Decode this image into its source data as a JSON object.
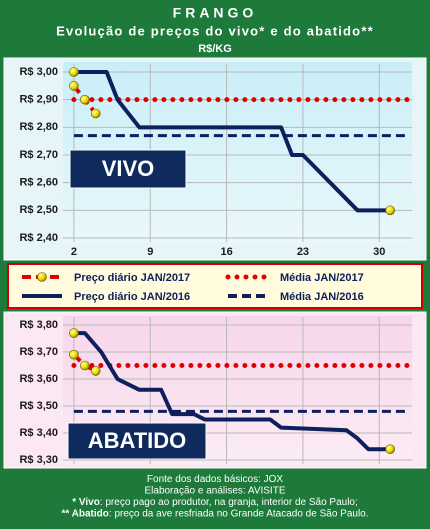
{
  "header": {
    "title": "FRANGO",
    "subtitle": "Evolução de preços do vivo* e do abatido**",
    "unit": "R$/KG"
  },
  "chart_data": [
    {
      "type": "line",
      "annotation": "VIVO",
      "xlim": [
        1,
        33
      ],
      "xticks": [
        2,
        9,
        16,
        23,
        30
      ],
      "ylim": [
        2.4,
        3.0
      ],
      "yticks": [
        {
          "value": 2.4,
          "label": "R$ 2,40"
        },
        {
          "value": 2.5,
          "label": "R$ 2,50"
        },
        {
          "value": 2.6,
          "label": "R$ 2,60"
        },
        {
          "value": 2.7,
          "label": "R$ 2,70"
        },
        {
          "value": 2.8,
          "label": "R$ 2,80"
        },
        {
          "value": 2.9,
          "label": "R$ 2,90"
        },
        {
          "value": 3.0,
          "label": "R$ 3,00"
        }
      ],
      "grid": true,
      "series": [
        {
          "name": "Preço diário JAN/2017",
          "color": "#e00000",
          "line_style": "dashed",
          "markers": "all",
          "x": [
            2,
            3,
            4
          ],
          "values": [
            2.95,
            2.9,
            2.85
          ]
        },
        {
          "name": "Média JAN/2017",
          "color": "#e00000",
          "line_style": "dotted",
          "value": 2.9
        },
        {
          "name": "Preço diário JAN/2016",
          "color": "#0d1f5c",
          "line_style": "solid",
          "markers": "ends",
          "x": [
            2,
            5,
            6,
            8,
            21,
            22,
            23,
            28,
            31
          ],
          "values": [
            3.0,
            3.0,
            2.9,
            2.8,
            2.8,
            2.7,
            2.7,
            2.5,
            2.5
          ]
        },
        {
          "name": "Média JAN/2016",
          "color": "#0d1f5c",
          "line_style": "dashed",
          "value": 2.77
        }
      ]
    },
    {
      "type": "line",
      "annotation": "ABATIDO",
      "xlim": [
        1,
        33
      ],
      "xticks": [
        2,
        9,
        16,
        23,
        30
      ],
      "ylim": [
        3.3,
        3.8
      ],
      "yticks": [
        {
          "value": 3.3,
          "label": "R$ 3,30"
        },
        {
          "value": 3.4,
          "label": "R$ 3,40"
        },
        {
          "value": 3.5,
          "label": "R$ 3,50"
        },
        {
          "value": 3.6,
          "label": "R$ 3,60"
        },
        {
          "value": 3.7,
          "label": "R$ 3,70"
        },
        {
          "value": 3.8,
          "label": "R$ 3,80"
        }
      ],
      "grid": true,
      "series": [
        {
          "color": "#e00000",
          "line_style": "dashed",
          "markers": "all",
          "x": [
            2,
            3,
            4
          ],
          "values": [
            3.69,
            3.65,
            3.63
          ]
        },
        {
          "color": "#e00000",
          "line_style": "dotted",
          "value": 3.65
        },
        {
          "color": "#0d1f5c",
          "line_style": "solid",
          "markers": "ends",
          "x": [
            2,
            3,
            4.5,
            6,
            7,
            8,
            10,
            11,
            13,
            14,
            20,
            21,
            27,
            28,
            29,
            31
          ],
          "values": [
            3.77,
            3.77,
            3.7,
            3.6,
            3.58,
            3.56,
            3.56,
            3.47,
            3.47,
            3.45,
            3.45,
            3.42,
            3.41,
            3.38,
            3.34,
            3.34
          ]
        },
        {
          "color": "#0d1f5c",
          "line_style": "dashed",
          "value": 3.48
        }
      ]
    }
  ],
  "footer": [
    {
      "text": "Fonte dos dados básicos: JOX"
    },
    {
      "text": "Elaboração e análises: AVISITE"
    },
    {
      "bold": "* Vivo",
      "text": ": preço pago ao produtor, na granja, interior de São Paulo;"
    },
    {
      "bold": "** Abatido",
      "text": ": preço da ave resfriada no Grande Atacado de São Paulo."
    }
  ]
}
